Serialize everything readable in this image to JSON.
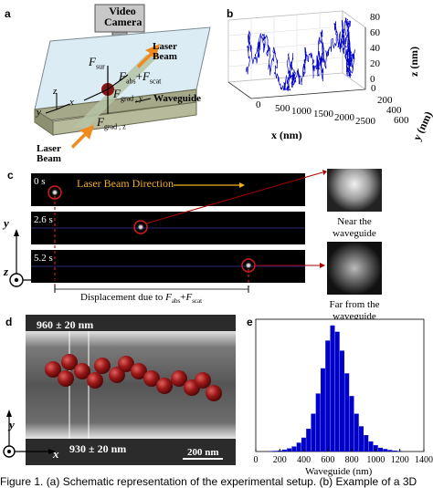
{
  "panels": {
    "a": {
      "label": "a",
      "camera": [
        "Video",
        "Camera"
      ],
      "laser_top": [
        "Laser",
        "Beam"
      ],
      "laser_bottom": [
        "Laser",
        "Beam"
      ],
      "waveguide": "Waveguide",
      "f_sur": "F",
      "f_sur_sub": "sur",
      "f_abs": "F",
      "f_abs_sub": "abs",
      "plus": "+",
      "f_scat": "F",
      "f_scat_sub": "scat",
      "f_grad_y": "F",
      "f_grad_y_sub": "grad , y",
      "f_grad_z": "F",
      "f_grad_z_sub": "grad , z",
      "axis_x": "x",
      "axis_y": "y",
      "axis_z": "z"
    },
    "b": {
      "label": "b",
      "x_label": "x (nm)",
      "y_label": "y (nm)",
      "z_label": "z (nm)",
      "x_ticks": [
        "0",
        "500",
        "1000",
        "1500",
        "2000",
        "2500"
      ],
      "y_ticks": [
        "0",
        "200",
        "400",
        "600"
      ],
      "z_ticks": [
        "0",
        "20",
        "40",
        "60",
        "80"
      ]
    },
    "c": {
      "label": "c",
      "times": [
        "0 s",
        "2.6 s",
        "5.2 s"
      ],
      "direction": "Laser Beam Direction",
      "near": [
        "Near the",
        "waveguide"
      ],
      "far": [
        "Far from the",
        "waveguide"
      ],
      "displacement": "Displacement due to",
      "axis_y": "y",
      "axis_z": "z",
      "axis_x": "x"
    },
    "d": {
      "label": "d",
      "top_width": "960 ± 20 nm",
      "bottom_width": "930 ± 20 nm",
      "scale": "200 nm",
      "axis_y": "y",
      "axis_x": "x"
    },
    "e": {
      "label": "e",
      "x_label": "Waveguide (nm)",
      "x_ticks": [
        "0",
        "200",
        "400",
        "600",
        "800",
        "1000",
        "1200",
        "1400"
      ]
    }
  },
  "caption": "Figure 1. (a) Schematic representation of the experimental setup. (b) Example of a 3D",
  "colors": {
    "blue": "#0000c8",
    "particle": "#8a1414",
    "laser": "#f08a1c",
    "red_circle": "#d21e1e"
  },
  "chart_data": [
    {
      "type": "bar",
      "title": "",
      "xlabel": "Waveguide (nm)",
      "ylabel": "",
      "xlim": [
        0,
        1400
      ],
      "bin_width": 40,
      "x": [
        120,
        160,
        200,
        240,
        280,
        320,
        360,
        400,
        440,
        480,
        520,
        560,
        600,
        640,
        680,
        720,
        760,
        800,
        840,
        880,
        920,
        960,
        1000,
        1040,
        1080,
        1120,
        1160,
        1200
      ],
      "values": [
        0.3,
        0.5,
        0.8,
        1.5,
        2.5,
        4,
        7,
        11,
        18,
        30,
        46,
        66,
        88,
        100,
        95,
        80,
        62,
        44,
        30,
        20,
        13,
        8,
        5,
        3,
        2,
        1.2,
        0.7,
        0.4
      ]
    },
    {
      "type": "line",
      "title": "",
      "xlabel": "x (nm)",
      "ylabel": "y (nm)",
      "zlabel": "z (nm)",
      "xlim": [
        0,
        2500
      ],
      "ylim": [
        0,
        600
      ],
      "zlim": [
        0,
        80
      ]
    }
  ]
}
